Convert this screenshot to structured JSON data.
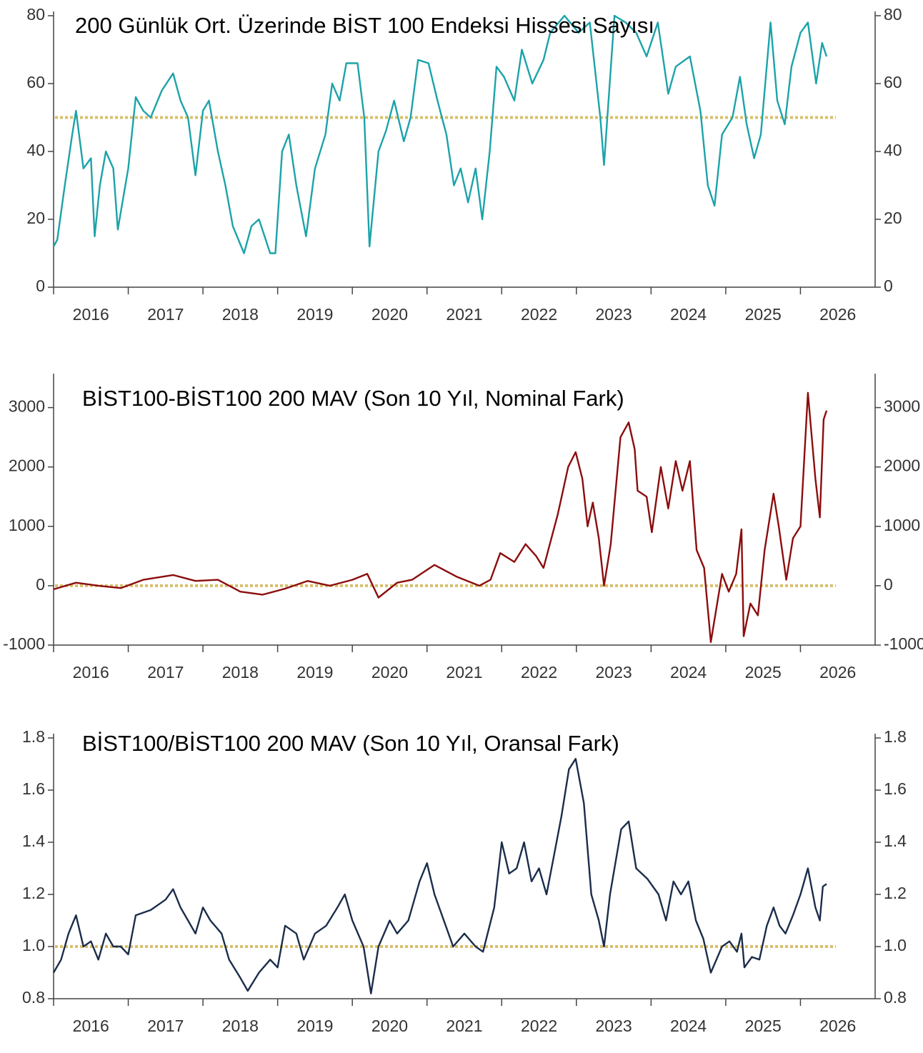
{
  "chart_data": [
    {
      "type": "line",
      "title": "200 Günlük Ort. Üzerinde BİST 100 Endeksi Hissesi Sayısı",
      "color": "#1ba3a9",
      "ref_line": 50,
      "xlim": [
        2016,
        2027
      ],
      "xticks": [
        2016,
        2017,
        2018,
        2019,
        2020,
        2021,
        2022,
        2023,
        2024,
        2025,
        2026
      ],
      "ylim": [
        0,
        80
      ],
      "yticks": [
        0,
        20,
        40,
        60,
        80
      ],
      "x": [
        2016.0,
        2016.05,
        2016.15,
        2016.25,
        2016.3,
        2016.4,
        2016.5,
        2016.55,
        2016.62,
        2016.7,
        2016.8,
        2016.86,
        2017.0,
        2017.1,
        2017.2,
        2017.3,
        2017.45,
        2017.6,
        2017.7,
        2017.8,
        2017.9,
        2018.0,
        2018.08,
        2018.2,
        2018.3,
        2018.4,
        2018.55,
        2018.65,
        2018.75,
        2018.9,
        2018.97,
        2019.06,
        2019.15,
        2019.25,
        2019.38,
        2019.5,
        2019.64,
        2019.73,
        2019.83,
        2019.92,
        2020.07,
        2020.16,
        2020.23,
        2020.35,
        2020.45,
        2020.56,
        2020.69,
        2020.78,
        2020.88,
        2021.02,
        2021.14,
        2021.26,
        2021.36,
        2021.45,
        2021.55,
        2021.65,
        2021.74,
        2021.84,
        2021.93,
        2022.03,
        2022.17,
        2022.27,
        2022.41,
        2022.56,
        2022.65,
        2022.84,
        2023.03,
        2023.18,
        2023.32,
        2023.37,
        2023.51,
        2023.66,
        2023.8,
        2023.94,
        2024.09,
        2024.23,
        2024.33,
        2024.52,
        2024.66,
        2024.76,
        2024.85,
        2024.95,
        2025.09,
        2025.19,
        2025.28,
        2025.38,
        2025.47,
        2025.6,
        2025.69,
        2025.79,
        2025.88,
        2026.0,
        2026.1,
        2026.21,
        2026.29,
        2026.35
      ],
      "values": [
        12,
        14,
        30,
        45,
        52,
        35,
        38,
        15,
        30,
        40,
        35,
        17,
        35,
        56,
        52,
        50,
        58,
        63,
        55,
        50,
        33,
        52,
        55,
        40,
        30,
        18,
        10,
        18,
        20,
        10,
        10,
        40,
        45,
        30,
        15,
        35,
        45,
        60,
        55,
        66,
        66,
        50,
        12,
        40,
        46,
        55,
        43,
        50,
        67,
        66,
        55,
        45,
        30,
        35,
        25,
        35,
        20,
        40,
        65,
        62,
        55,
        70,
        60,
        67,
        75,
        80,
        75,
        78,
        50,
        36,
        80,
        78,
        75,
        68,
        78,
        57,
        65,
        68,
        52,
        30,
        24,
        45,
        50,
        62,
        48,
        38,
        45,
        78,
        55,
        48,
        65,
        75,
        78,
        60,
        72,
        68
      ]
    },
    {
      "type": "line",
      "title": "BİST100-BİST100 200 MAV (Son 10 Yıl, Nominal Fark)",
      "color": "#8b0d0d",
      "ref_line": 0,
      "xlim": [
        2016,
        2027
      ],
      "xticks": [
        2016,
        2017,
        2018,
        2019,
        2020,
        2021,
        2022,
        2023,
        2024,
        2025,
        2026
      ],
      "ylim": [
        -1000,
        3500
      ],
      "yticks": [
        -1000,
        0,
        1000,
        2000,
        3000
      ],
      "x": [
        2016.0,
        2016.3,
        2016.6,
        2016.9,
        2017.2,
        2017.6,
        2017.9,
        2018.2,
        2018.5,
        2018.8,
        2019.1,
        2019.4,
        2019.7,
        2020.0,
        2020.2,
        2020.35,
        2020.6,
        2020.8,
        2021.1,
        2021.4,
        2021.7,
        2021.85,
        2021.98,
        2022.17,
        2022.32,
        2022.46,
        2022.56,
        2022.75,
        2022.89,
        2022.99,
        2023.08,
        2023.15,
        2023.22,
        2023.3,
        2023.37,
        2023.46,
        2023.59,
        2023.7,
        2023.78,
        2023.82,
        2023.94,
        2024.01,
        2024.13,
        2024.23,
        2024.33,
        2024.42,
        2024.52,
        2024.61,
        2024.71,
        2024.8,
        2024.95,
        2025.04,
        2025.14,
        2025.21,
        2025.24,
        2025.33,
        2025.43,
        2025.52,
        2025.64,
        2025.71,
        2025.81,
        2025.9,
        2026.0,
        2026.1,
        2026.2,
        2026.26,
        2026.31,
        2026.35
      ],
      "values": [
        -60,
        50,
        0,
        -40,
        100,
        180,
        80,
        100,
        -100,
        -150,
        -50,
        80,
        0,
        100,
        200,
        -200,
        50,
        100,
        350,
        150,
        0,
        100,
        550,
        400,
        700,
        500,
        300,
        1200,
        2000,
        2250,
        1800,
        1000,
        1400,
        800,
        0,
        700,
        2500,
        2750,
        2300,
        1600,
        1500,
        900,
        2000,
        1300,
        2100,
        1600,
        2100,
        600,
        300,
        -950,
        200,
        -100,
        200,
        950,
        -850,
        -300,
        -500,
        600,
        1550,
        1000,
        100,
        800,
        1000,
        3250,
        1800,
        1150,
        2800,
        2950
      ]
    },
    {
      "type": "line",
      "title": "BİST100/BİST100 200 MAV (Son 10 Yıl, Oransal Fark)",
      "color": "#1b2d4b",
      "ref_line": 1,
      "xlim": [
        2016,
        2027
      ],
      "xticks": [
        2016,
        2017,
        2018,
        2019,
        2020,
        2021,
        2022,
        2023,
        2024,
        2025,
        2026
      ],
      "ylim": [
        0.8,
        1.8
      ],
      "yticks": [
        0.8,
        {
          "value": 1,
          "label": "1.0"
        },
        1.2,
        1.4,
        1.6,
        1.8
      ],
      "x": [
        2016.0,
        2016.1,
        2016.2,
        2016.3,
        2016.4,
        2016.5,
        2016.6,
        2016.7,
        2016.8,
        2016.9,
        2017.0,
        2017.1,
        2017.3,
        2017.5,
        2017.6,
        2017.7,
        2017.8,
        2017.9,
        2018.0,
        2018.1,
        2018.25,
        2018.35,
        2018.5,
        2018.6,
        2018.75,
        2018.9,
        2019.0,
        2019.1,
        2019.25,
        2019.35,
        2019.5,
        2019.65,
        2019.8,
        2019.9,
        2020.0,
        2020.15,
        2020.25,
        2020.35,
        2020.5,
        2020.6,
        2020.75,
        2020.9,
        2021.0,
        2021.1,
        2021.25,
        2021.35,
        2021.5,
        2021.65,
        2021.75,
        2021.9,
        2022.0,
        2022.1,
        2022.2,
        2022.3,
        2022.4,
        2022.5,
        2022.6,
        2022.7,
        2022.8,
        2022.9,
        2022.99,
        2023.1,
        2023.2,
        2023.3,
        2023.37,
        2023.45,
        2023.6,
        2023.7,
        2023.8,
        2023.95,
        2024.1,
        2024.2,
        2024.3,
        2024.4,
        2024.5,
        2024.6,
        2024.7,
        2024.8,
        2024.95,
        2025.05,
        2025.15,
        2025.21,
        2025.25,
        2025.35,
        2025.45,
        2025.55,
        2025.64,
        2025.72,
        2025.8,
        2025.9,
        2026.0,
        2026.1,
        2026.2,
        2026.26,
        2026.3,
        2026.35
      ],
      "values": [
        0.9,
        0.95,
        1.05,
        1.12,
        1.0,
        1.02,
        0.95,
        1.05,
        1.0,
        1.0,
        0.97,
        1.12,
        1.14,
        1.18,
        1.22,
        1.15,
        1.1,
        1.05,
        1.15,
        1.1,
        1.05,
        0.95,
        0.88,
        0.83,
        0.9,
        0.95,
        0.92,
        1.08,
        1.05,
        0.95,
        1.05,
        1.08,
        1.15,
        1.2,
        1.1,
        1.0,
        0.82,
        1.0,
        1.1,
        1.05,
        1.1,
        1.25,
        1.32,
        1.2,
        1.08,
        1.0,
        1.05,
        1.0,
        0.98,
        1.15,
        1.4,
        1.28,
        1.3,
        1.4,
        1.25,
        1.3,
        1.2,
        1.35,
        1.5,
        1.68,
        1.72,
        1.55,
        1.2,
        1.1,
        1.0,
        1.2,
        1.45,
        1.48,
        1.3,
        1.26,
        1.2,
        1.1,
        1.25,
        1.2,
        1.25,
        1.1,
        1.03,
        0.9,
        1.0,
        1.02,
        0.98,
        1.05,
        0.92,
        0.96,
        0.95,
        1.08,
        1.15,
        1.08,
        1.05,
        1.12,
        1.2,
        1.3,
        1.15,
        1.1,
        1.23,
        1.24
      ]
    }
  ]
}
